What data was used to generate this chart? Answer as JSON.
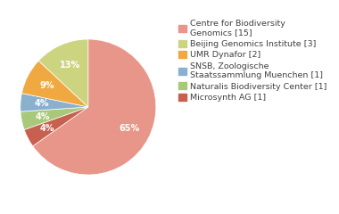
{
  "labels": [
    "Centre for Biodiversity\nGenomics [15]",
    "Beijing Genomics Institute [3]",
    "UMR Dynafor [2]",
    "SNSB, Zoologische\nStaatssammlung Muenchen [1]",
    "Naturalis Biodiversity Center [1]",
    "Microsynth AG [1]"
  ],
  "values": [
    15,
    3,
    2,
    1,
    1,
    1
  ],
  "colors": [
    "#e8958a",
    "#cdd480",
    "#f0a840",
    "#8ab0d0",
    "#a8c87a",
    "#c86050"
  ],
  "background_color": "#ffffff",
  "text_color": "#404040",
  "fontsize": 7.0,
  "legend_fontsize": 6.8
}
